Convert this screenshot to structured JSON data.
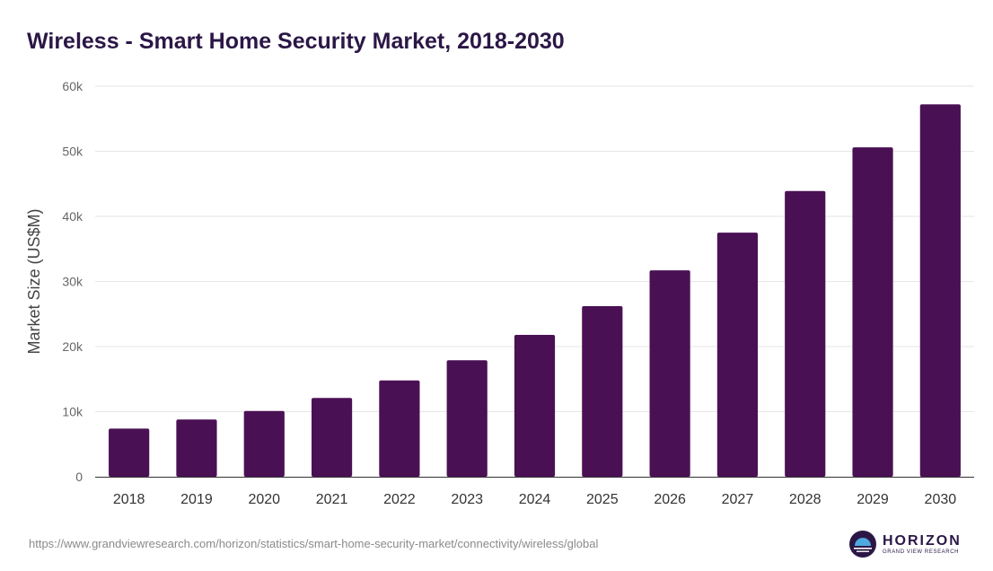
{
  "page": {
    "source_url": "https://www.grandviewresearch.com/horizon/statistics/smart-home-security-market/connectivity/wireless/global",
    "brand": {
      "name": "HORIZON",
      "subtitle": "GRAND VIEW RESEARCH"
    }
  },
  "chart_data": {
    "type": "bar",
    "title": "Wireless - Smart Home Security Market, 2018-2030",
    "xlabel": "",
    "ylabel": "Market Size (US$M)",
    "ylim": [
      0,
      60000
    ],
    "y_ticks": [
      0,
      10000,
      20000,
      30000,
      40000,
      50000,
      60000
    ],
    "y_tick_labels": [
      "0",
      "10k",
      "20k",
      "30k",
      "40k",
      "50k",
      "60k"
    ],
    "grid": true,
    "legend": "none",
    "bar_color": "#4a1054",
    "categories": [
      "2018",
      "2019",
      "2020",
      "2021",
      "2022",
      "2023",
      "2024",
      "2025",
      "2026",
      "2027",
      "2028",
      "2029",
      "2030"
    ],
    "values": [
      7400,
      8800,
      10100,
      12100,
      14800,
      17900,
      21800,
      26200,
      31700,
      37500,
      43900,
      50600,
      57200
    ]
  }
}
